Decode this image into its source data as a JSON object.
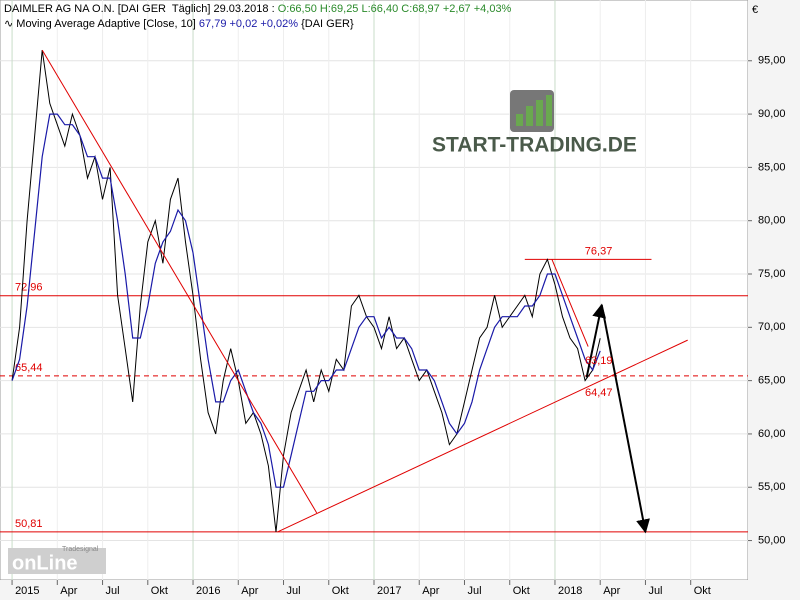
{
  "chart_data": {
    "type": "line",
    "title": "DAIMLER AG NA O.N. [DAI GER  Täglich] 29.03.2018 :",
    "ohlc": "O:66,50 H:69,25 L:66,40",
    "change": "C:68,97 +2,67 +4,03%",
    "currency": "€",
    "watermarks": [
      "START-TRADING.DE",
      "Tradesignal",
      "onLine"
    ],
    "xlim": [
      -0.8,
      48.8
    ],
    "ylim": [
      46.3,
      100.7
    ],
    "xticks": [
      {
        "value": 0,
        "label": "2015"
      },
      {
        "value": 3,
        "label": "Apr"
      },
      {
        "value": 6,
        "label": "Jul"
      },
      {
        "value": 9,
        "label": "Okt"
      },
      {
        "value": 12,
        "label": "2016"
      },
      {
        "value": 15,
        "label": "Apr"
      },
      {
        "value": 18,
        "label": "Jul"
      },
      {
        "value": 21,
        "label": "Okt"
      },
      {
        "value": 24,
        "label": "2017"
      },
      {
        "value": 27,
        "label": "Apr"
      },
      {
        "value": 30,
        "label": "Jul"
      },
      {
        "value": 33,
        "label": "Okt"
      },
      {
        "value": 36,
        "label": "2018"
      },
      {
        "value": 39,
        "label": "Apr"
      },
      {
        "value": 42,
        "label": "Jul"
      },
      {
        "value": 45,
        "label": "Okt"
      }
    ],
    "yticks": [
      {
        "value": 50,
        "label": "50,00"
      },
      {
        "value": 55,
        "label": "55,00"
      },
      {
        "value": 60,
        "label": "60,00"
      },
      {
        "value": 65,
        "label": "65,00"
      },
      {
        "value": 70,
        "label": "70,00"
      },
      {
        "value": 75,
        "label": "75,00"
      },
      {
        "value": 80,
        "label": "80,00"
      },
      {
        "value": 85,
        "label": "85,00"
      },
      {
        "value": 90,
        "label": "90,00"
      },
      {
        "value": 95,
        "label": "95,00"
      }
    ],
    "grid": true,
    "x": [
      0,
      0.5,
      1,
      1.5,
      2,
      2.5,
      3,
      3.5,
      4,
      4.5,
      5,
      5.5,
      6,
      6.5,
      7,
      7.5,
      8,
      8.5,
      9,
      9.5,
      10,
      10.5,
      11,
      11.5,
      12,
      12.5,
      13,
      13.5,
      14,
      14.5,
      15,
      15.5,
      16,
      16.5,
      17,
      17.5,
      18,
      18.5,
      19,
      19.5,
      20,
      20.5,
      21,
      21.5,
      22,
      22.5,
      23,
      23.5,
      24,
      24.5,
      25,
      25.5,
      26,
      26.5,
      27,
      27.5,
      28,
      28.5,
      29,
      29.5,
      30,
      30.5,
      31,
      31.5,
      32,
      32.5,
      33,
      33.5,
      34,
      34.5,
      35,
      35.5,
      36,
      36.5,
      37,
      37.5,
      38,
      38.5,
      39
    ],
    "series": [
      {
        "name": "",
        "color": "#000000",
        "values": [
          65,
          70,
          80,
          88,
          96,
          91,
          89,
          87,
          90,
          88,
          84,
          86,
          82,
          85,
          73,
          68,
          63,
          72,
          78,
          80,
          76,
          82,
          84,
          78,
          73,
          67,
          62,
          60,
          65,
          68,
          65,
          61,
          62,
          60,
          57,
          50.81,
          58,
          62,
          64,
          66,
          63,
          66,
          64,
          67,
          66,
          72,
          73,
          71,
          70,
          68,
          71,
          68,
          69,
          67,
          65,
          66,
          64,
          62,
          59,
          60,
          63,
          66,
          69,
          70,
          73,
          70,
          71,
          72,
          73,
          71,
          75,
          76.37,
          74,
          71,
          69,
          68,
          65,
          66,
          68.97
        ]
      },
      {
        "name": "Moving Average Adaptive [Close, 10]",
        "value_label": "67,79 +0,02 +0,02%",
        "suffix": "{DAI GER}",
        "color": "#1a1aa8",
        "values": [
          65,
          67,
          72,
          79,
          86,
          90,
          90,
          89,
          89,
          88,
          86,
          86,
          84,
          84,
          80,
          75,
          69,
          69,
          72,
          76,
          78,
          79,
          81,
          80,
          77,
          72,
          67,
          63,
          63,
          65,
          66,
          64,
          62,
          61,
          59,
          55,
          55,
          58,
          61,
          64,
          64,
          65,
          65,
          66,
          66,
          68,
          70,
          71,
          71,
          69,
          70,
          69,
          69,
          68,
          66,
          66,
          65,
          63,
          61,
          60,
          61,
          63,
          66,
          68,
          70,
          71,
          71,
          71,
          72,
          72,
          73,
          75,
          75,
          73,
          71,
          69,
          67,
          66,
          67.79
        ]
      }
    ],
    "levels": [
      {
        "value": 72.96,
        "label": "72,96",
        "dash": false
      },
      {
        "value": 65.44,
        "label": "65,44",
        "dash": true
      },
      {
        "value": 50.81,
        "label": "50,81",
        "dash": false
      },
      {
        "value": 76.37,
        "label": "76,37",
        "dash": false,
        "from": 34,
        "to": 42.4
      }
    ],
    "point_labels": [
      {
        "label": "63,19"
      },
      {
        "label": "64,47"
      }
    ],
    "trendlines": [
      {
        "from": [
          2,
          96
        ],
        "to": [
          20.2,
          52.6
        ]
      },
      {
        "from": [
          17.6,
          50.81
        ],
        "to": [
          44.8,
          68.8
        ]
      },
      {
        "from": [
          35.8,
          76.37
        ],
        "to": [
          38.2,
          68.2
        ]
      }
    ],
    "arrows": [
      {
        "from": [
          38.1,
          65.3
        ],
        "to": [
          39.1,
          72.1
        ]
      },
      {
        "from": [
          39.1,
          72.1
        ],
        "to": [
          42,
          50.8
        ]
      }
    ]
  }
}
